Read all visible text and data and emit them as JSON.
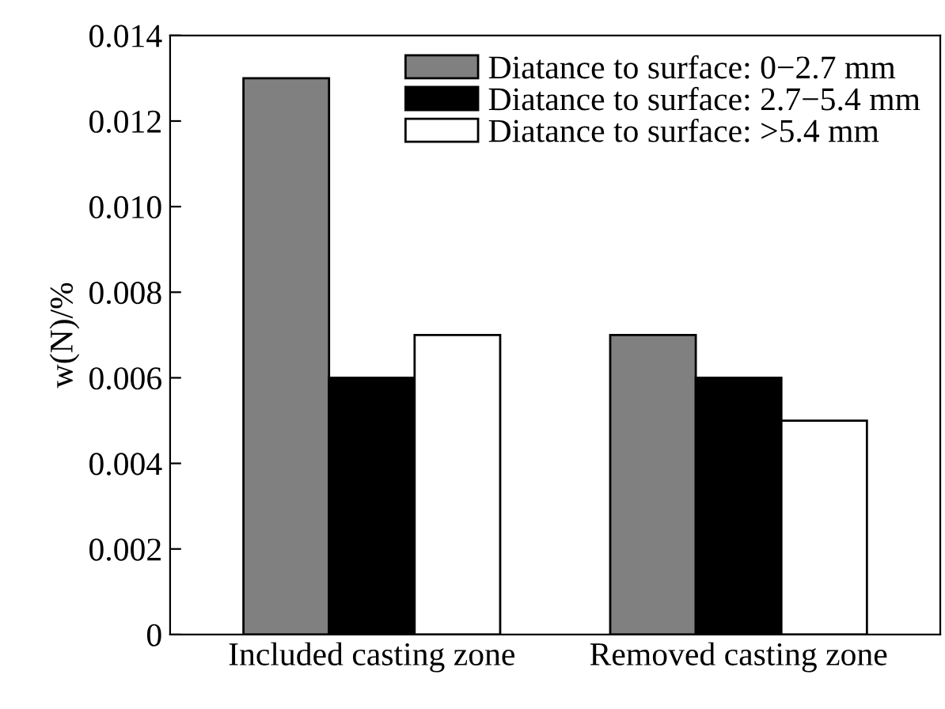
{
  "chart_data": {
    "type": "bar",
    "categories": [
      "Included casting zone",
      "Removed casting zone"
    ],
    "ylabel": "w(N)/%",
    "series": [
      {
        "name": "Diatance to surface: 0−2.7 mm",
        "color": "#808080",
        "values": [
          0.013,
          0.007
        ]
      },
      {
        "name": "Diatance to surface: 2.7−5.4 mm",
        "color": "#000000",
        "values": [
          0.006,
          0.006
        ]
      },
      {
        "name": "Diatance to surface: >5.4 mm",
        "color": "#ffffff",
        "values": [
          0.007,
          0.005
        ]
      }
    ],
    "ylim": [
      0,
      0.014
    ],
    "yticks": [
      0,
      0.002,
      0.004,
      0.006,
      0.008,
      {
        "value": 0.01,
        "label": "0.010"
      },
      0.012,
      0.014
    ],
    "grid": false,
    "legend": "top right"
  }
}
